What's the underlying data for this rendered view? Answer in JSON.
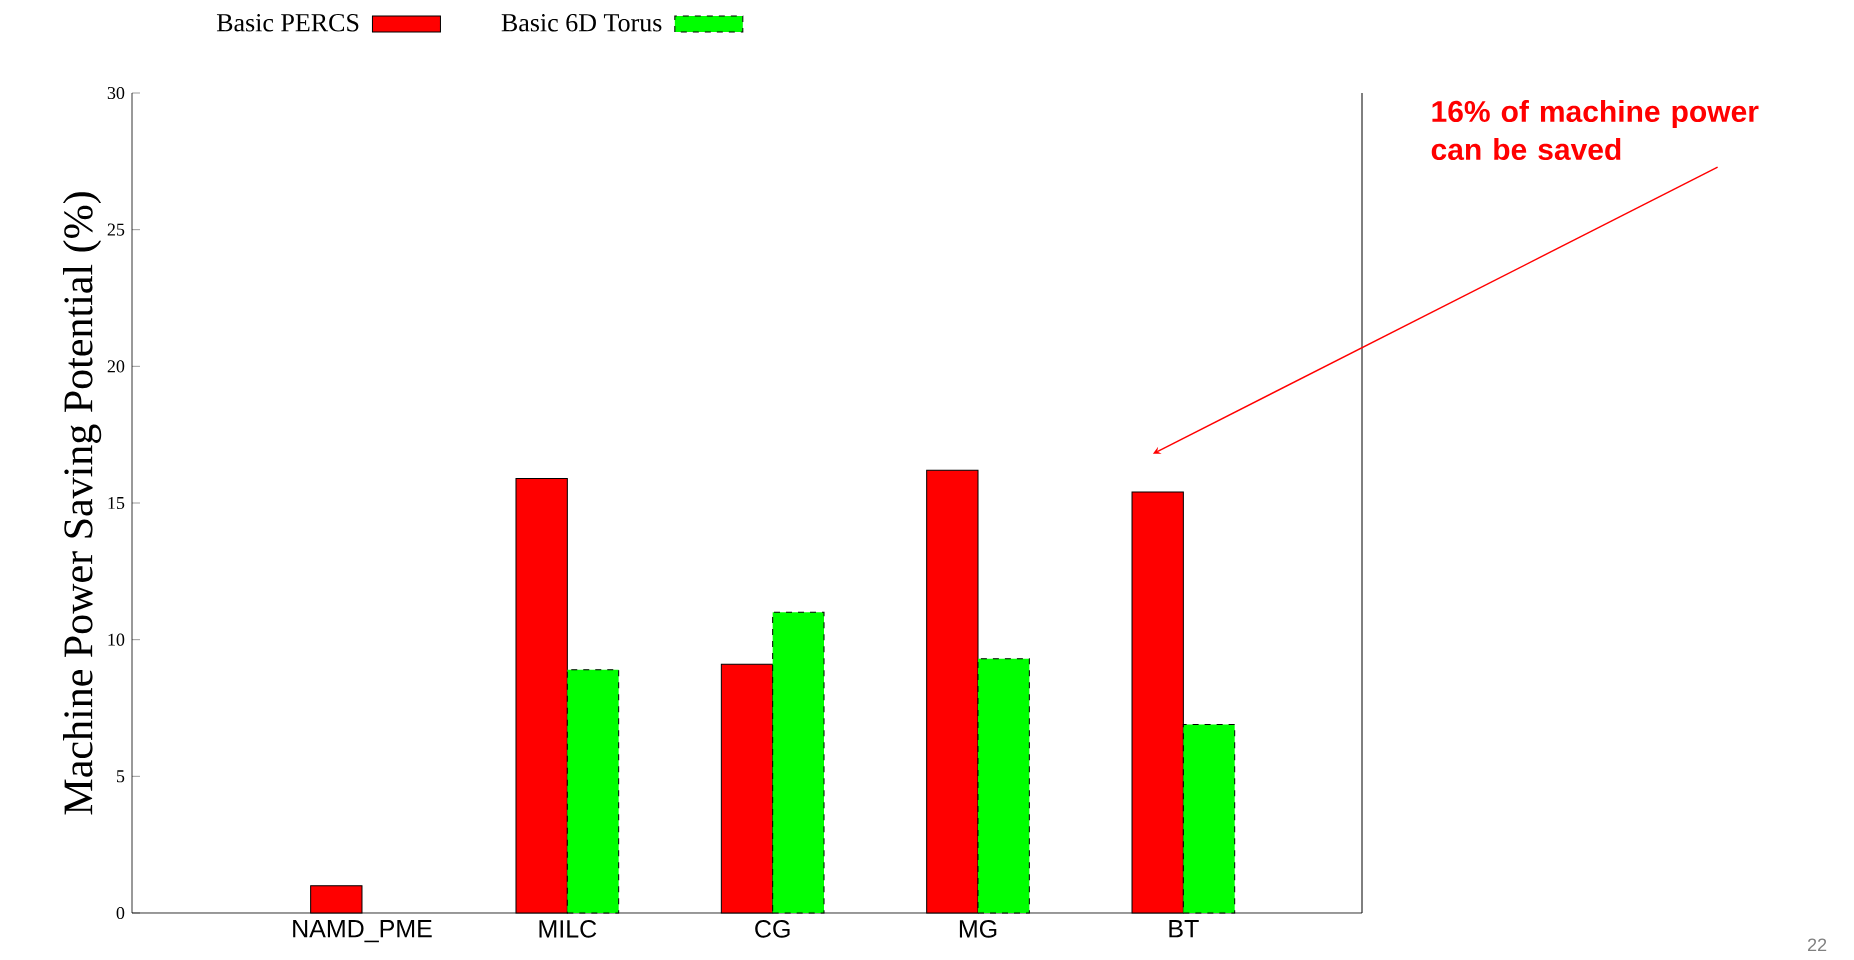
{
  "chart_data": {
    "type": "bar",
    "ylabel": "Machine Power Saving Potential (%)",
    "categories": [
      "NAMD_PME",
      "MILC",
      "CG",
      "MG",
      "BT"
    ],
    "series": [
      {
        "name": "Basic PERCS",
        "color": "#ff0000",
        "values": [
          1.0,
          15.9,
          9.1,
          16.2,
          15.4
        ]
      },
      {
        "name": "Basic 6D Torus",
        "color": "#00ff00",
        "line_style": "dashed",
        "values": [
          null,
          8.9,
          11.0,
          9.3,
          6.9
        ]
      }
    ],
    "ylim": [
      0,
      30
    ],
    "yticks": [
      0,
      5,
      10,
      15,
      20,
      25,
      30
    ],
    "legend": "top",
    "annotations": [
      "16% of machine power can be saved",
      "22"
    ]
  }
}
